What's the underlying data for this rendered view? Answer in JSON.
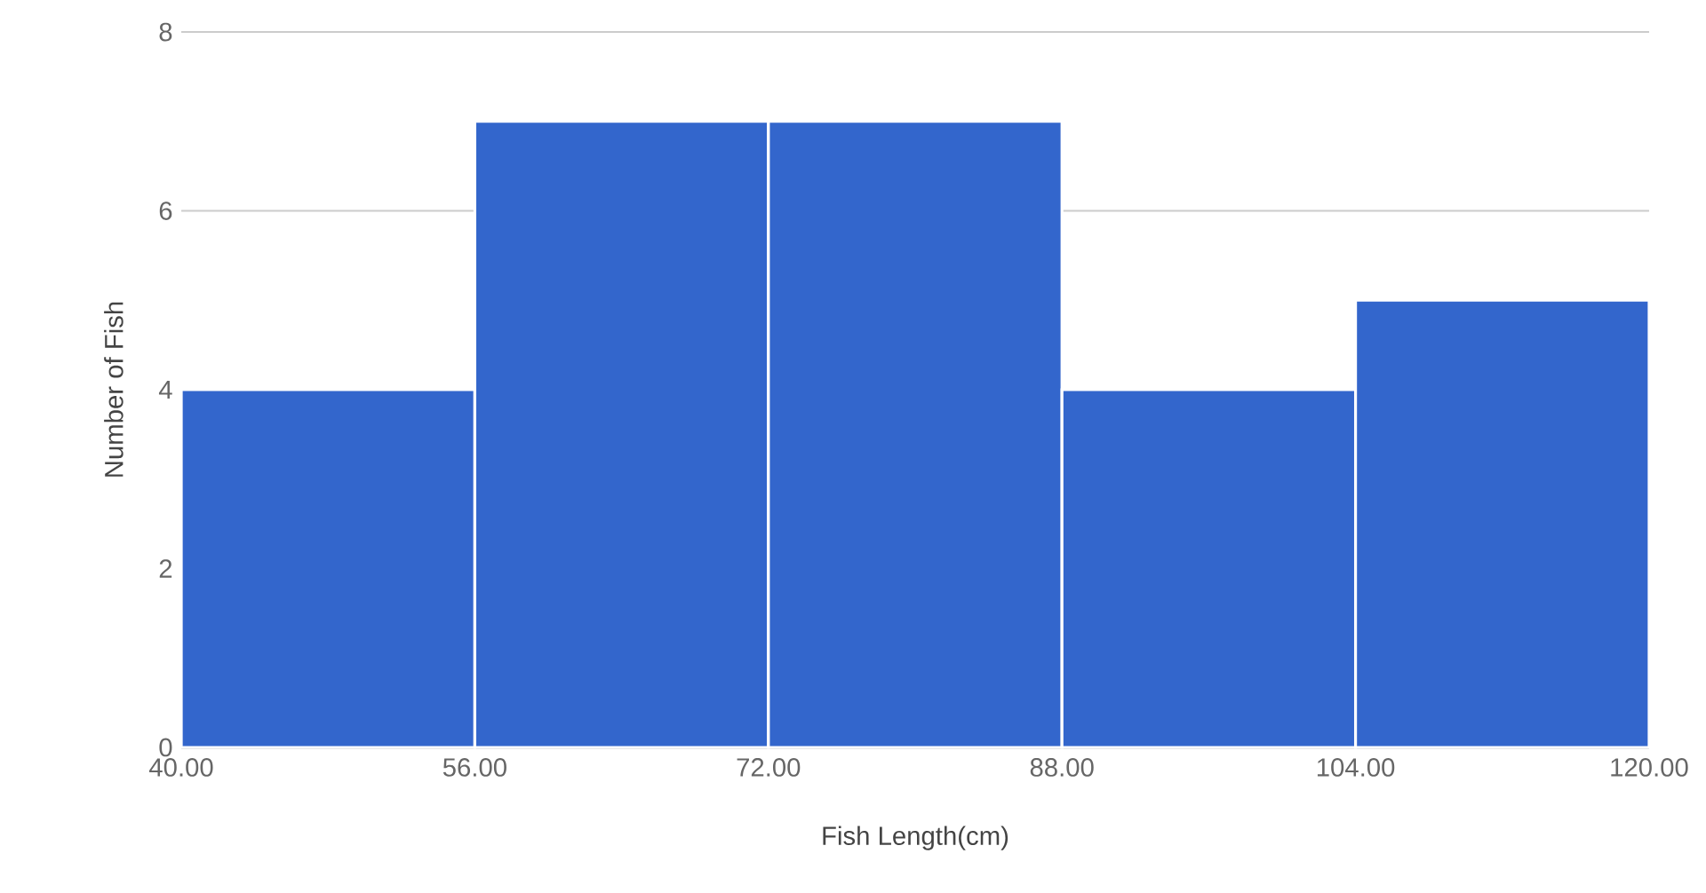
{
  "chart_data": {
    "type": "histogram",
    "xlabel": "Fish Length(cm)",
    "ylabel": "Number of Fish",
    "bins": [
      40,
      56,
      72,
      88,
      104,
      120
    ],
    "values": [
      4,
      7,
      7,
      4,
      5
    ],
    "color": "#3366cc",
    "xlim": [
      40,
      120
    ],
    "ylim": [
      0,
      8
    ],
    "xticks": [
      {
        "value": 40,
        "label": "40.00"
      },
      {
        "value": 56,
        "label": "56.00"
      },
      {
        "value": 72,
        "label": "72.00"
      },
      {
        "value": 88,
        "label": "88.00"
      },
      {
        "value": 104,
        "label": "104.00"
      },
      {
        "value": 120,
        "label": "120.00"
      }
    ],
    "yticks": [
      0,
      2,
      4,
      6,
      8
    ],
    "grid": "y"
  }
}
